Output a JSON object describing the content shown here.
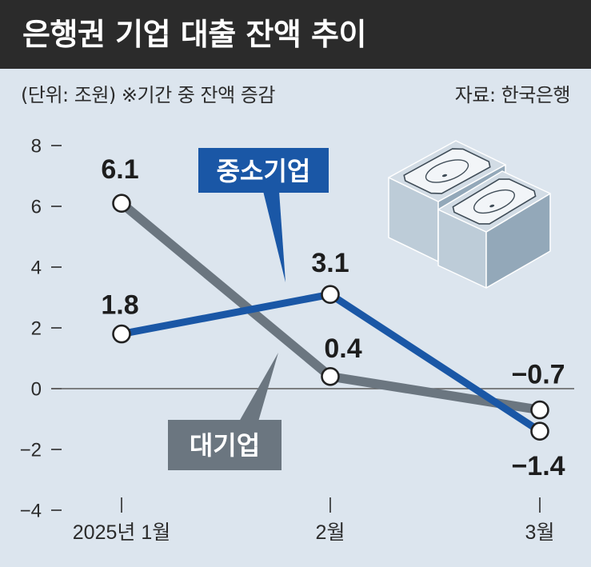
{
  "colors": {
    "header_bg": "#2b2b2b",
    "header_text": "#ffffff",
    "background": "#dce5ee",
    "text": "#2b2b2b",
    "zero_line": "#5c5c5c",
    "point_fill": "#ffffff",
    "point_stroke": "#222222",
    "block_top": "#d2dce5",
    "block_left": "#bdccd8",
    "block_right": "#93a8b9"
  },
  "illustration": {
    "icon": "banknote-stack-icon"
  },
  "chart_data": {
    "type": "line",
    "title": "은행권 기업 대출 잔액 추이",
    "subtitle": "(단위: 조원) ※기간 중 잔액 증감",
    "source": "자료: 한국은행",
    "categories": [
      "2025년 1월",
      "2월",
      "3월"
    ],
    "ylim": [
      -4,
      8
    ],
    "yticks": [
      8,
      6,
      4,
      2,
      0,
      -2,
      -4
    ],
    "ytick_labels": [
      "8",
      "6",
      "4",
      "2",
      "0",
      "−2",
      "−4"
    ],
    "grid": false,
    "zero_line": true,
    "legend": "inline callouts",
    "series": [
      {
        "name": "대기업",
        "values": [
          6.1,
          0.4,
          -0.7
        ],
        "data_labels": [
          "6.1",
          "0.4",
          "−0.7"
        ],
        "color": "#6b7680"
      },
      {
        "name": "중소기업",
        "values": [
          1.8,
          3.1,
          -1.4
        ],
        "data_labels": [
          "1.8",
          "3.1",
          "−1.4"
        ],
        "color": "#1a57a6"
      }
    ]
  }
}
